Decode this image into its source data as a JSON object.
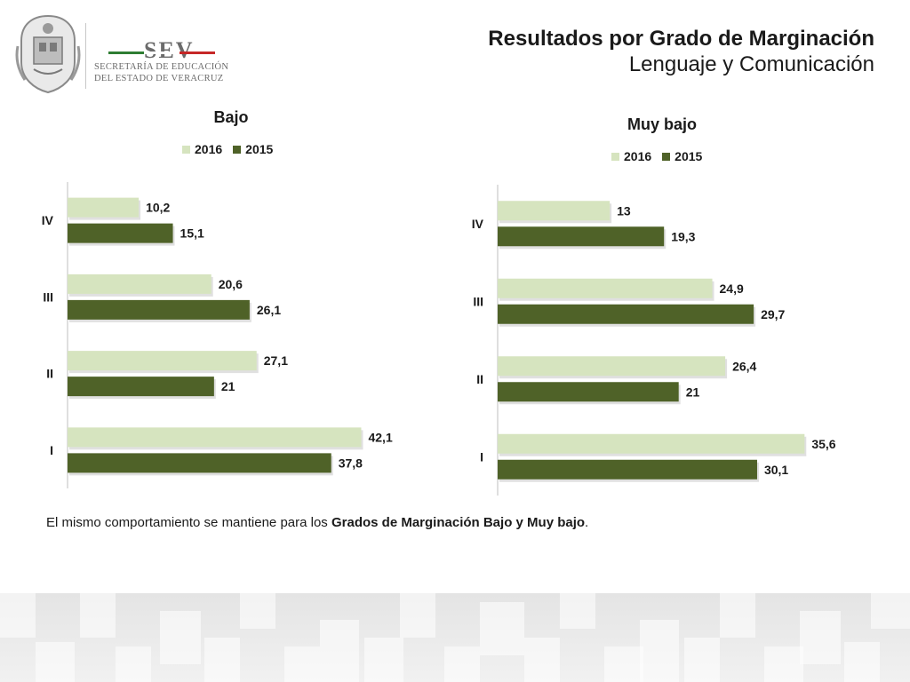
{
  "logo": {
    "brand": "SEV",
    "line1": "SECRETARÍA DE EDUCACIÓN",
    "line2": "DEL ESTADO DE VERACRUZ",
    "stripe_colors": [
      "#2e7d32",
      "#ffffff",
      "#c62828"
    ]
  },
  "header": {
    "title": "Resultados por Grado de Marginación",
    "subtitle": "Lenguaje y Comunicación"
  },
  "colors": {
    "s2016": "#d6e4bf",
    "s2015": "#4f6228"
  },
  "chart_data": [
    {
      "type": "bar",
      "orientation": "horizontal",
      "title": "Bajo",
      "categories": [
        "IV",
        "III",
        "II",
        "I"
      ],
      "series": [
        {
          "name": "2016",
          "values": [
            10.2,
            20.6,
            27.1,
            42.1
          ],
          "labels": [
            "10,2",
            "20,6",
            "27,1",
            "42,1"
          ]
        },
        {
          "name": "2015",
          "values": [
            15.1,
            26.1,
            21,
            37.8
          ],
          "labels": [
            "15,1",
            "26,1",
            "21",
            "37,8"
          ]
        }
      ],
      "legend": "top",
      "grid": false
    },
    {
      "type": "bar",
      "orientation": "horizontal",
      "title": "Muy bajo",
      "categories": [
        "IV",
        "III",
        "II",
        "I"
      ],
      "series": [
        {
          "name": "2016",
          "values": [
            13,
            24.9,
            26.4,
            35.6
          ],
          "labels": [
            "13",
            "24,9",
            "26,4",
            "35,6"
          ]
        },
        {
          "name": "2015",
          "values": [
            19.3,
            29.7,
            21,
            30.1
          ],
          "labels": [
            "19,3",
            "29,7",
            "21",
            "30,1"
          ]
        }
      ],
      "legend": "top",
      "grid": false
    }
  ],
  "note": {
    "prefix": "El mismo comportamiento se mantiene para los ",
    "bold": "Grados de Marginación Bajo y Muy bajo",
    "suffix": "."
  }
}
